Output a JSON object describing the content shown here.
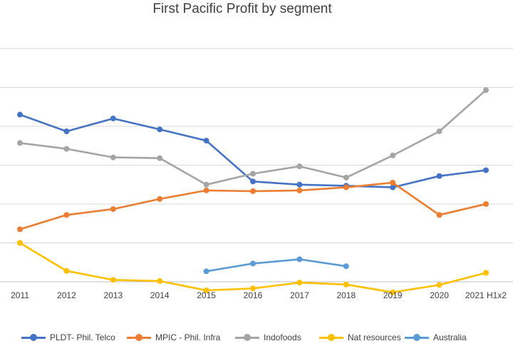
{
  "chart_data": {
    "type": "line",
    "title": "First Pacific Profit by segment",
    "xlabel": "",
    "ylabel": "",
    "categories": [
      "2011",
      "2012",
      "2013",
      "2014",
      "2015",
      "2016",
      "2017",
      "2018",
      "2019",
      "2020",
      "2021 H1x2"
    ],
    "ylim": [
      0,
      6
    ],
    "grid": true,
    "legend": "bottom",
    "series": [
      {
        "name": "PLDT- Phil. Telco",
        "color": "#4472C4",
        "values": [
          4.3,
          3.87,
          4.2,
          3.92,
          3.63,
          2.58,
          2.5,
          2.47,
          2.43,
          2.72,
          2.87
        ]
      },
      {
        "name": "MPIC - Phil. Infra",
        "color": "#ED7D31",
        "values": [
          1.35,
          1.72,
          1.87,
          2.13,
          2.35,
          2.33,
          2.35,
          2.43,
          2.55,
          1.72,
          2.0
        ]
      },
      {
        "name": "Indofoods",
        "color": "#A5A5A5",
        "values": [
          3.57,
          3.42,
          3.2,
          3.18,
          2.5,
          2.78,
          2.97,
          2.68,
          3.25,
          3.87,
          4.93
        ]
      },
      {
        "name": "Nat resources",
        "color": "#FFC000",
        "values": [
          1.0,
          0.28,
          0.05,
          0.02,
          -0.22,
          -0.17,
          -0.02,
          -0.07,
          -0.27,
          -0.08,
          0.23
        ]
      },
      {
        "name": "Australia",
        "color": "#5B9BD5",
        "values": [
          null,
          null,
          null,
          null,
          0.27,
          0.47,
          0.58,
          0.4,
          null,
          null,
          null
        ]
      }
    ]
  }
}
